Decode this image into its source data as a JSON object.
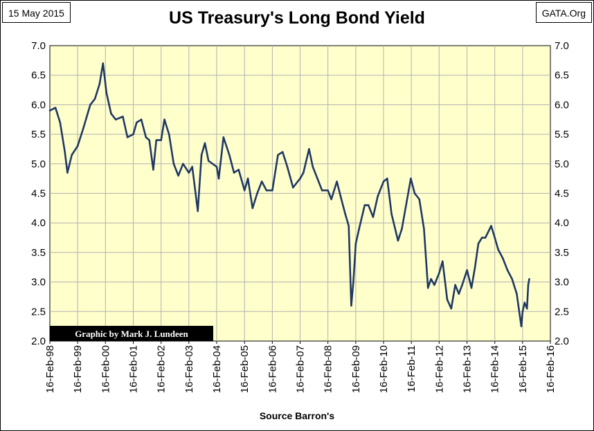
{
  "header": {
    "date": "15 May 2015",
    "source": "GATA.Org"
  },
  "credit": "Graphic by Mark J. Lundeen",
  "colors": {
    "plot_background": "#ffffcc",
    "line": "#1f3864",
    "gridline": "#b0b0b0",
    "credit_background": "#000000",
    "credit_text": "#ffffff"
  },
  "chart_data": {
    "type": "line",
    "title": "US Treasury's Long Bond Yield",
    "xlabel": "Source Barron's",
    "ylabel": "",
    "ylim": [
      2.0,
      7.0
    ],
    "xlim": [
      "1998-02-16",
      "2016-02-16"
    ],
    "yticks": [
      "2.0",
      "2.5",
      "3.0",
      "3.5",
      "4.0",
      "4.5",
      "5.0",
      "5.5",
      "6.0",
      "6.5",
      "7.0"
    ],
    "xticks": [
      "16-Feb-98",
      "16-Feb-99",
      "16-Feb-00",
      "16-Feb-01",
      "16-Feb-02",
      "16-Feb-03",
      "16-Feb-04",
      "16-Feb-05",
      "16-Feb-06",
      "16-Feb-07",
      "16-Feb-08",
      "16-Feb-09",
      "16-Feb-10",
      "16-Feb-11",
      "16-Feb-12",
      "16-Feb-13",
      "16-Feb-14",
      "16-Feb-15",
      "16-Feb-16"
    ],
    "grid": "horizontal and vertical",
    "legend": "none",
    "y_axis_mirrored_right": true,
    "series": [
      {
        "x": [
          "1998-02-16",
          "1998-05-01",
          "1998-07-01",
          "1998-09-01",
          "1998-10-05",
          "1998-12-01",
          "1999-02-16",
          "1999-05-01",
          "1999-08-01",
          "1999-10-01",
          "1999-12-01",
          "2000-01-15",
          "2000-03-01",
          "2000-05-01",
          "2000-07-01",
          "2000-10-01",
          "2000-12-01",
          "2001-02-16",
          "2001-04-01",
          "2001-06-01",
          "2001-08-01",
          "2001-09-15",
          "2001-11-05",
          "2001-12-15",
          "2002-02-16",
          "2002-04-01",
          "2002-06-01",
          "2002-08-01",
          "2002-10-01",
          "2002-12-01",
          "2003-02-16",
          "2003-04-01",
          "2003-06-13",
          "2003-08-01",
          "2003-09-15",
          "2003-11-01",
          "2004-02-16",
          "2004-03-15",
          "2004-05-15",
          "2004-08-01",
          "2004-10-01",
          "2004-12-01",
          "2005-02-16",
          "2005-04-01",
          "2005-06-01",
          "2005-08-01",
          "2005-10-01",
          "2005-12-01",
          "2006-02-16",
          "2006-05-01",
          "2006-07-01",
          "2006-09-01",
          "2006-11-15",
          "2007-02-16",
          "2007-04-01",
          "2007-06-13",
          "2007-08-01",
          "2007-10-01",
          "2007-12-01",
          "2008-02-16",
          "2008-04-01",
          "2008-06-13",
          "2008-08-01",
          "2008-10-01",
          "2008-11-15",
          "2008-12-19",
          "2009-01-15",
          "2009-02-16",
          "2009-04-01",
          "2009-06-13",
          "2009-08-01",
          "2009-10-01",
          "2009-12-01",
          "2010-02-16",
          "2010-04-05",
          "2010-06-01",
          "2010-08-25",
          "2010-10-15",
          "2010-12-15",
          "2011-02-09",
          "2011-04-01",
          "2011-06-01",
          "2011-08-01",
          "2011-09-22",
          "2011-11-01",
          "2011-12-15",
          "2012-02-16",
          "2012-04-01",
          "2012-06-01",
          "2012-07-24",
          "2012-09-15",
          "2012-11-01",
          "2012-12-15",
          "2013-02-16",
          "2013-04-15",
          "2013-06-01",
          "2013-07-15",
          "2013-09-01",
          "2013-10-15",
          "2013-12-31",
          "2014-02-16",
          "2014-04-01",
          "2014-06-01",
          "2014-08-01",
          "2014-10-01",
          "2014-12-01",
          "2015-01-30",
          "2015-02-16",
          "2015-03-15",
          "2015-04-15",
          "2015-05-01",
          "2015-05-15"
        ],
        "y": [
          5.9,
          5.95,
          5.7,
          5.2,
          4.85,
          5.15,
          5.3,
          5.6,
          6.0,
          6.1,
          6.35,
          6.7,
          6.2,
          5.85,
          5.75,
          5.8,
          5.45,
          5.5,
          5.7,
          5.75,
          5.45,
          5.4,
          4.9,
          5.4,
          5.4,
          5.75,
          5.5,
          5.0,
          4.8,
          5.0,
          4.85,
          4.95,
          4.2,
          5.15,
          5.35,
          5.05,
          4.95,
          4.75,
          5.45,
          5.15,
          4.85,
          4.9,
          4.55,
          4.75,
          4.25,
          4.5,
          4.7,
          4.55,
          4.55,
          5.15,
          5.2,
          4.95,
          4.6,
          4.75,
          4.85,
          5.25,
          4.95,
          4.75,
          4.55,
          4.55,
          4.4,
          4.7,
          4.45,
          4.15,
          3.95,
          2.6,
          3.0,
          3.65,
          3.9,
          4.3,
          4.3,
          4.1,
          4.45,
          4.7,
          4.75,
          4.15,
          3.7,
          3.9,
          4.35,
          4.75,
          4.5,
          4.4,
          3.9,
          2.9,
          3.05,
          2.95,
          3.15,
          3.35,
          2.7,
          2.55,
          2.95,
          2.8,
          2.95,
          3.2,
          2.9,
          3.25,
          3.65,
          3.75,
          3.75,
          3.95,
          3.75,
          3.55,
          3.4,
          3.2,
          3.05,
          2.8,
          2.25,
          2.5,
          2.65,
          2.55,
          2.95,
          3.05
        ]
      }
    ]
  }
}
